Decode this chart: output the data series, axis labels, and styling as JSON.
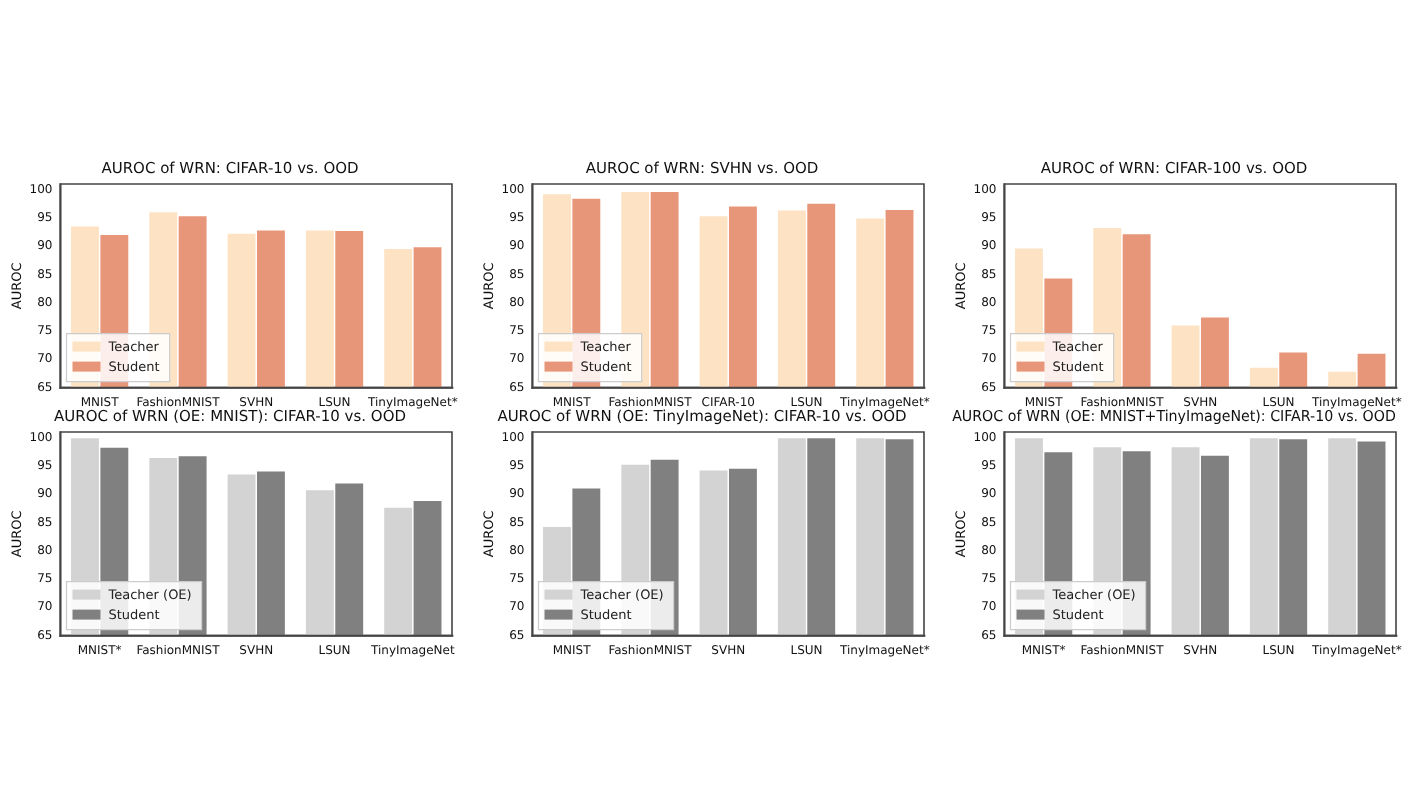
{
  "chart_data": [
    {
      "type": "bar",
      "title": "AUROC of WRN: CIFAR-10 vs. OOD",
      "ylabel": "AUROC",
      "categories": [
        "MNIST",
        "FashionMNIST",
        "SVHN",
        "LSUN",
        "TinyImageNet*"
      ],
      "series": [
        {
          "name": "Teacher",
          "color": "#fde3c3",
          "values": [
            93.5,
            96,
            92.2,
            92.8,
            89.5
          ]
        },
        {
          "name": "Student",
          "color": "#e8967a",
          "values": [
            92,
            95.3,
            92.8,
            92.7,
            89.8
          ]
        }
      ],
      "ylim": [
        65,
        101
      ],
      "yticks": [
        65,
        70,
        75,
        80,
        85,
        90,
        95,
        100
      ],
      "grid": false,
      "legend": "bottom left"
    },
    {
      "type": "bar",
      "title": "AUROC of WRN: SVHN vs. OOD",
      "ylabel": "AUROC",
      "categories": [
        "MNIST",
        "FashionMNIST",
        "CIFAR-10",
        "LSUN",
        "TinyImageNet*"
      ],
      "series": [
        {
          "name": "Teacher",
          "color": "#fde3c3",
          "values": [
            99.2,
            99.6,
            95.3,
            96.3,
            94.9
          ]
        },
        {
          "name": "Student",
          "color": "#e8967a",
          "values": [
            98.4,
            99.6,
            97,
            97.5,
            96.4
          ]
        }
      ],
      "ylim": [
        65,
        101
      ],
      "yticks": [
        65,
        70,
        75,
        80,
        85,
        90,
        95,
        100
      ],
      "grid": false,
      "legend": "bottom left"
    },
    {
      "type": "bar",
      "title": "AUROC of WRN: CIFAR-100 vs. OOD",
      "ylabel": "AUROC",
      "categories": [
        "MNIST",
        "FashionMNIST",
        "SVHN",
        "LSUN",
        "TinyImageNet*"
      ],
      "series": [
        {
          "name": "Teacher",
          "color": "#fde3c3",
          "values": [
            89.6,
            93.2,
            76,
            68.5,
            67.8
          ]
        },
        {
          "name": "Student",
          "color": "#e8967a",
          "values": [
            84.3,
            92.1,
            77.4,
            71.2,
            71
          ]
        }
      ],
      "ylim": [
        65,
        101
      ],
      "yticks": [
        65,
        70,
        75,
        80,
        85,
        90,
        95,
        100
      ],
      "grid": false,
      "legend": "bottom left"
    },
    {
      "type": "bar",
      "title": "AUROC of WRN (OE: MNIST): CIFAR-10 vs. OOD",
      "ylabel": "AUROC",
      "categories": [
        "MNIST*",
        "FashionMNIST",
        "SVHN",
        "LSUN",
        "TinyImageNet"
      ],
      "series": [
        {
          "name": "Teacher (OE)",
          "color": "#d3d3d3",
          "values": [
            99.9,
            96.4,
            93.5,
            90.7,
            87.6
          ]
        },
        {
          "name": "Student",
          "color": "#808080",
          "values": [
            98.2,
            96.7,
            94,
            91.9,
            88.8
          ]
        }
      ],
      "ylim": [
        65,
        101
      ],
      "yticks": [
        65,
        70,
        75,
        80,
        85,
        90,
        95,
        100
      ],
      "grid": false,
      "legend": "bottom left"
    },
    {
      "type": "bar",
      "title": "AUROC of WRN (OE: TinyImageNet): CIFAR-10 vs. OOD",
      "ylabel": "AUROC",
      "categories": [
        "MNIST",
        "FashionMNIST",
        "SVHN",
        "LSUN",
        "TinyImageNet*"
      ],
      "series": [
        {
          "name": "Teacher (OE)",
          "color": "#d3d3d3",
          "values": [
            84.2,
            95.2,
            94.2,
            99.9,
            99.9
          ]
        },
        {
          "name": "Student",
          "color": "#808080",
          "values": [
            91,
            96.1,
            94.5,
            99.9,
            99.7
          ]
        }
      ],
      "ylim": [
        65,
        101
      ],
      "yticks": [
        65,
        70,
        75,
        80,
        85,
        90,
        95,
        100
      ],
      "grid": false,
      "legend": "bottom left"
    },
    {
      "type": "bar",
      "title": "AUROC of WRN (OE: MNIST+TinyImageNet): CIFAR-10 vs. OOD",
      "ylabel": "AUROC",
      "categories": [
        "MNIST*",
        "FashionMNIST",
        "SVHN",
        "LSUN",
        "TinyImageNet*"
      ],
      "series": [
        {
          "name": "Teacher (OE)",
          "color": "#d3d3d3",
          "values": [
            99.9,
            98.3,
            98.3,
            99.9,
            99.9
          ]
        },
        {
          "name": "Student",
          "color": "#808080",
          "values": [
            97.4,
            97.6,
            96.8,
            99.7,
            99.3
          ]
        }
      ],
      "ylim": [
        65,
        101
      ],
      "yticks": [
        65,
        70,
        75,
        80,
        85,
        90,
        95,
        100
      ],
      "grid": false,
      "legend": "bottom left"
    }
  ]
}
